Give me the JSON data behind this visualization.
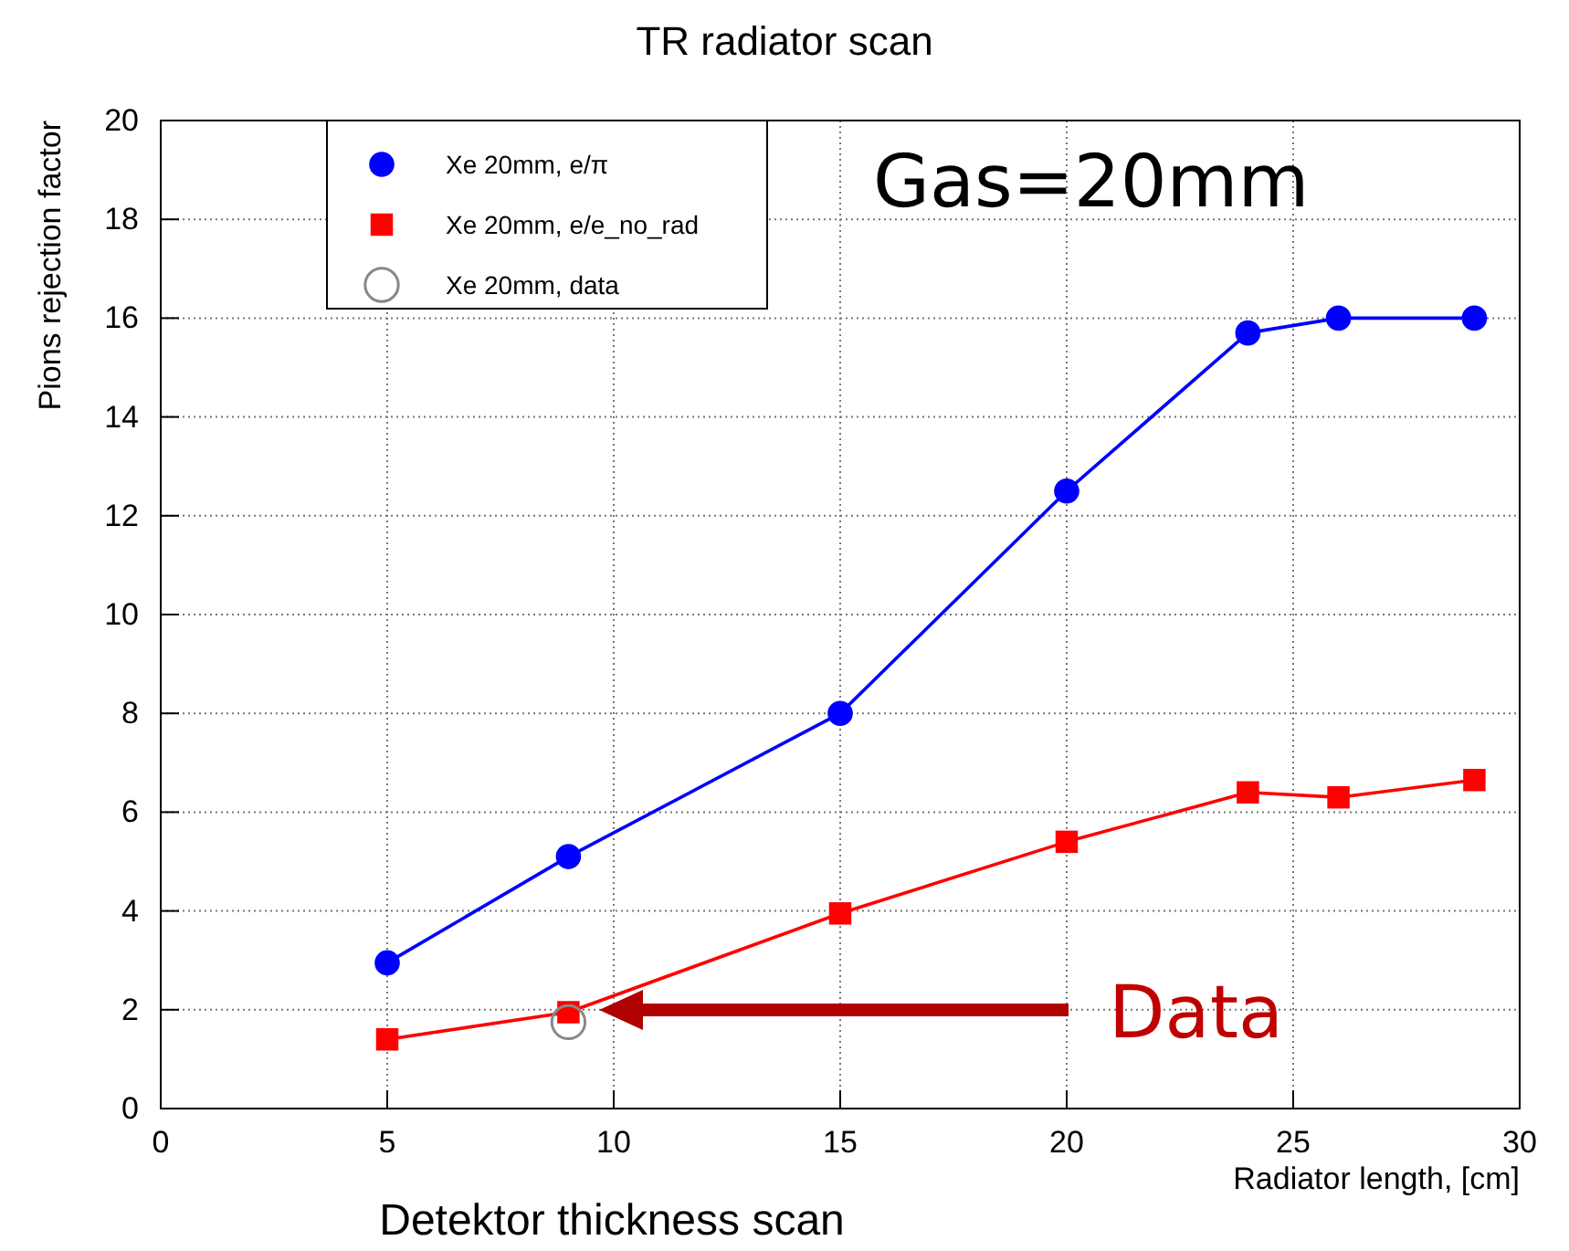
{
  "chart_data": {
    "type": "line",
    "title": "TR radiator scan",
    "xlabel": "Radiator length, [cm]",
    "ylabel": "Pions rejection factor",
    "x": [
      5,
      9,
      15,
      20,
      24,
      26,
      29
    ],
    "series": [
      {
        "name": "Xe 20mm, e/π",
        "color": "#0000ff",
        "marker": "circle",
        "values": [
          2.95,
          5.1,
          8.0,
          12.5,
          15.7,
          16.0,
          16.0
        ]
      },
      {
        "name": "Xe 20mm, e/e_no_rad",
        "color": "#ff0000",
        "marker": "square",
        "values": [
          1.4,
          1.95,
          3.95,
          5.4,
          6.4,
          6.3,
          6.65
        ]
      },
      {
        "name": "Xe 20mm, data",
        "type": "scatter",
        "color": "#888888",
        "marker": "circle",
        "x": [
          9
        ],
        "values": [
          1.75
        ]
      }
    ],
    "xlim": [
      0,
      30
    ],
    "xticks": [
      0,
      5,
      10,
      15,
      20,
      25,
      30
    ],
    "ylim": [
      0,
      20
    ],
    "yticks": [
      0,
      2,
      4,
      6,
      8,
      10,
      12,
      14,
      16,
      18,
      20
    ],
    "grid": true,
    "legend": "top left",
    "annotations": [
      "Gas=20mm",
      "Data",
      "Detektor thickness scan"
    ]
  }
}
